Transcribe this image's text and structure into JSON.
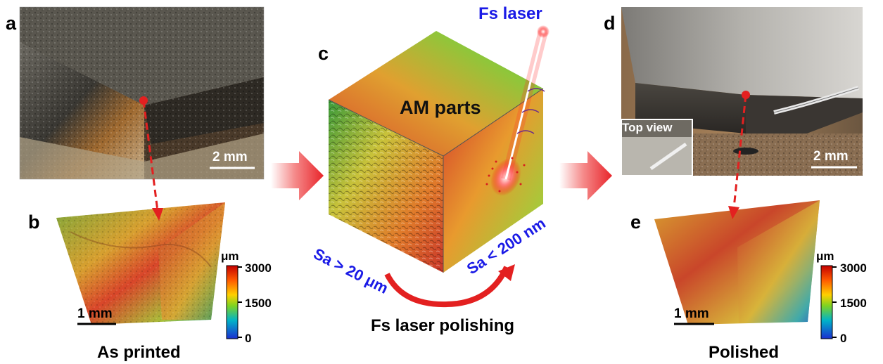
{
  "panels": {
    "a": {
      "letter": "a",
      "scale_bar": "2 mm"
    },
    "b": {
      "letter": "b",
      "caption": "As printed",
      "scale_bar": "1 mm",
      "colorbar": {
        "unit": "μm",
        "ticks": [
          "3000",
          "1500",
          "0"
        ],
        "colors": [
          "#d7191c",
          "#fdae61",
          "#a6d96a",
          "#1a9641",
          "#2c7bb6"
        ]
      }
    },
    "c": {
      "letter": "c",
      "laser_label": "Fs laser",
      "parts_label": "AM parts",
      "left_roughness": "Sa > 20 μm",
      "right_roughness": "Sa < 200 nm",
      "caption": "Fs laser polishing"
    },
    "d": {
      "letter": "d",
      "inset_label": "Top view",
      "scale_bar": "2 mm"
    },
    "e": {
      "letter": "e",
      "caption": "Polished",
      "scale_bar": "1 mm",
      "colorbar": {
        "unit": "μm",
        "ticks": [
          "3000",
          "1500",
          "0"
        ]
      }
    }
  },
  "colors": {
    "arrow_red": "#e8242a",
    "dashed_red": "#e32020",
    "label_blue": "#1a1ae6"
  },
  "icons": {
    "flow_arrow": "right-arrow-icon",
    "marker": "location-dot-icon"
  }
}
